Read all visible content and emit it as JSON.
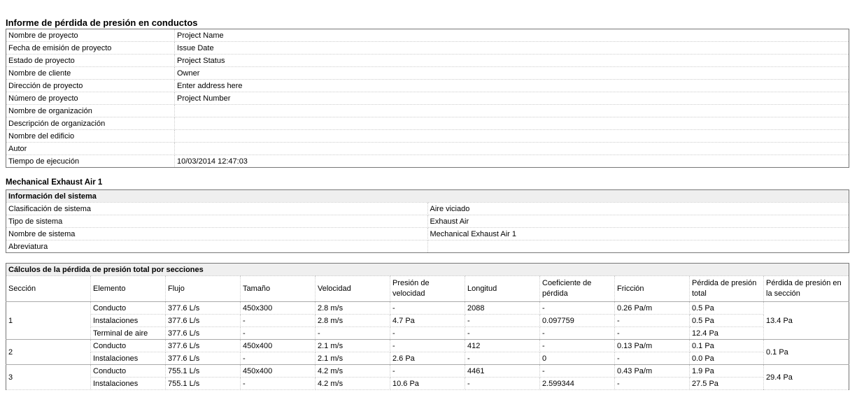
{
  "report_title": "Informe de pérdida de presión en conductos",
  "project_info": [
    {
      "label": "Nombre de proyecto",
      "value": "Project Name"
    },
    {
      "label": "Fecha de emisión de proyecto",
      "value": "Issue Date"
    },
    {
      "label": "Estado de proyecto",
      "value": "Project Status"
    },
    {
      "label": "Nombre de cliente",
      "value": "Owner"
    },
    {
      "label": "Dirección de proyecto",
      "value": "Enter address here"
    },
    {
      "label": "Número de proyecto",
      "value": "Project Number"
    },
    {
      "label": "Nombre de organización",
      "value": ""
    },
    {
      "label": "Descripción de organización",
      "value": ""
    },
    {
      "label": "Nombre del edificio",
      "value": ""
    },
    {
      "label": "Autor",
      "value": ""
    },
    {
      "label": "Tiempo de ejecución",
      "value": "10/03/2014 12:47:03"
    }
  ],
  "system_title": "Mechanical Exhaust Air 1",
  "system_info": {
    "heading": "Información del sistema",
    "rows": [
      {
        "label": "Clasificación de sistema",
        "value": "Aire viciado"
      },
      {
        "label": "Tipo de sistema",
        "value": "Exhaust Air"
      },
      {
        "label": "Nombre de sistema",
        "value": "Mechanical Exhaust Air 1"
      },
      {
        "label": "Abreviatura",
        "value": ""
      }
    ]
  },
  "calc": {
    "heading": "Cálculos de la pérdida de presión total por secciones",
    "columns": [
      "Sección",
      "Elemento",
      "Flujo",
      "Tamaño",
      "Velocidad",
      "Presión de velocidad",
      "Longitud",
      "Coeficiente de pérdida",
      "Fricción",
      "Pérdida de presión total",
      "Pérdida de presión en la sección"
    ],
    "sections": [
      {
        "section": "1",
        "section_loss": "13.4 Pa",
        "rows": [
          [
            "Conducto",
            "377.6 L/s",
            "450x300",
            "2.8 m/s",
            "-",
            "2088",
            "-",
            "0.26 Pa/m",
            "0.5 Pa"
          ],
          [
            "Instalaciones",
            "377.6 L/s",
            "-",
            "2.8 m/s",
            "4.7 Pa",
            "-",
            "0.097759",
            "-",
            "0.5 Pa"
          ],
          [
            "Terminal de aire",
            "377.6 L/s",
            "-",
            "-",
            "-",
            "-",
            "-",
            "-",
            "12.4 Pa"
          ]
        ]
      },
      {
        "section": "2",
        "section_loss": "0.1 Pa",
        "rows": [
          [
            "Conducto",
            "377.6 L/s",
            "450x400",
            "2.1 m/s",
            "-",
            "412",
            "-",
            "0.13 Pa/m",
            "0.1 Pa"
          ],
          [
            "Instalaciones",
            "377.6 L/s",
            "-",
            "2.1 m/s",
            "2.6 Pa",
            "-",
            "0",
            "-",
            "0.0 Pa"
          ]
        ]
      },
      {
        "section": "3",
        "section_loss": "29.4 Pa",
        "rows": [
          [
            "Conducto",
            "755.1 L/s",
            "450x400",
            "4.2 m/s",
            "-",
            "4461",
            "-",
            "0.43 Pa/m",
            "1.9 Pa"
          ],
          [
            "Instalaciones",
            "755.1 L/s",
            "-",
            "4.2 m/s",
            "10.6 Pa",
            "-",
            "2.599344",
            "-",
            "27.5 Pa"
          ]
        ]
      }
    ]
  }
}
